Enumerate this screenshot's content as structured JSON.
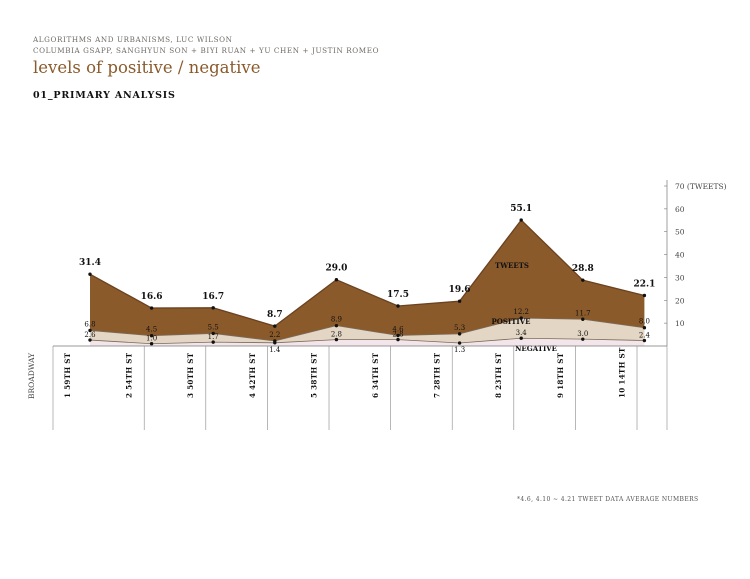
{
  "header": {
    "line1": "Algorithms and Urbanisms, Luc Wilson",
    "line2": "Columbia GSAPP, Sanghyun Son + Biyi Ruan + Yu Chen + Justin Romeo",
    "title": "levels of positive / negative",
    "subtitle": "01_PRIMARY ANALYSIS"
  },
  "footnote": "*4.6, 4.10 ~ 4.21 tweet data average numbers",
  "chart_data": {
    "type": "area",
    "x_title": "BROADWAY",
    "categories": [
      "1 59th St",
      "2 54th St",
      "3 50th St",
      "4 42th St",
      "5 38th St",
      "6 34th St",
      "7 28th St",
      "8 23th St",
      "9 18th St",
      "10 14th St"
    ],
    "series": [
      {
        "name": "TWEETS",
        "values": [
          31.4,
          16.6,
          16.7,
          8.7,
          29.0,
          17.5,
          19.6,
          55.1,
          28.8,
          22.1
        ],
        "labels": [
          "31.4",
          "16.6",
          "16.7",
          "8.7",
          "29.0",
          "17.5",
          "19.6",
          "55.1",
          "28.8",
          "22.1"
        ],
        "color": "#8b5a2b"
      },
      {
        "name": "POSITIVE",
        "values": [
          6.8,
          4.5,
          5.5,
          2.2,
          8.9,
          4.6,
          5.3,
          12.2,
          11.7,
          8.0
        ],
        "labels": [
          "6.8",
          "4.5",
          "5.5",
          "2.2",
          "8.9",
          "4.6",
          "5.3",
          "12.2",
          "11.7",
          "8.0"
        ],
        "color": "#e4d6c4"
      },
      {
        "name": "NEGATIVE",
        "values": [
          2.6,
          1.0,
          1.7,
          1.4,
          2.8,
          2.8,
          1.3,
          3.4,
          3.0,
          2.4
        ],
        "labels": [
          "2.6",
          "1.0",
          "1.7",
          "1.4",
          "2.8",
          "2.8",
          "1.3",
          "3.4",
          "3.0",
          "2.4"
        ],
        "color": "#f3e6ea"
      }
    ],
    "y_axis": {
      "ticks": [
        10,
        20,
        30,
        40,
        50,
        60,
        70
      ],
      "tick_labels": [
        "10",
        "20",
        "30",
        "40",
        "50",
        "60",
        "70 (TWEETS)"
      ],
      "ylim": [
        0,
        70
      ],
      "side": "right"
    }
  }
}
